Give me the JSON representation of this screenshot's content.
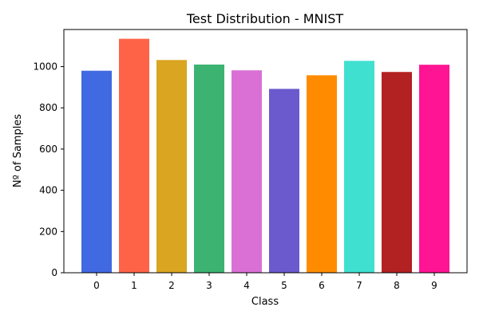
{
  "chart_data": {
    "type": "bar",
    "title": "Test Distribution - MNIST",
    "xlabel": "Class",
    "ylabel": "Nº of Samples",
    "categories": [
      "0",
      "1",
      "2",
      "3",
      "4",
      "5",
      "6",
      "7",
      "8",
      "9"
    ],
    "values": [
      980,
      1135,
      1032,
      1010,
      982,
      892,
      958,
      1028,
      974,
      1009
    ],
    "colors": [
      "#4169e1",
      "#ff6347",
      "#daa520",
      "#3cb371",
      "#da70d6",
      "#6a5acd",
      "#ff8c00",
      "#40e0d0",
      "#b22222",
      "#ff1493"
    ],
    "yticks": [
      "0",
      "200",
      "400",
      "600",
      "800",
      "1000"
    ],
    "ylim": [
      0,
      1180
    ],
    "grid": false,
    "legend": "none"
  }
}
